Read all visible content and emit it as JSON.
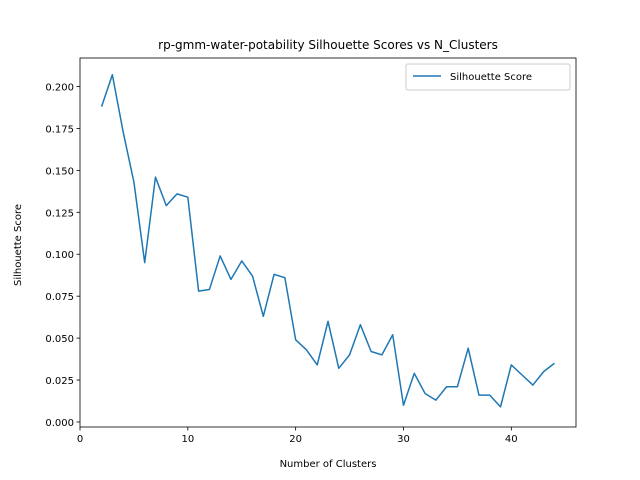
{
  "chart_data": {
    "type": "line",
    "title": "rp-gmm-water-potability Silhouette Scores vs N_Clusters",
    "xlabel": "Number of Clusters",
    "ylabel": "Silhouette Score",
    "xlim": [
      0,
      46
    ],
    "ylim": [
      -0.003,
      0.217
    ],
    "xticks": [
      0,
      10,
      20,
      30,
      40
    ],
    "yticks": [
      0.0,
      0.025,
      0.05,
      0.075,
      0.1,
      0.125,
      0.15,
      0.175,
      0.2
    ],
    "xtick_labels": [
      "0",
      "10",
      "20",
      "30",
      "40"
    ],
    "ytick_labels": [
      "0.000",
      "0.025",
      "0.050",
      "0.075",
      "0.100",
      "0.125",
      "0.150",
      "0.175",
      "0.200"
    ],
    "grid": false,
    "legend_position": "top-right",
    "series": [
      {
        "name": "Silhouette Score",
        "color": "#1f77b4",
        "x": [
          2,
          3,
          4,
          5,
          6,
          7,
          8,
          9,
          10,
          11,
          12,
          13,
          14,
          15,
          16,
          17,
          18,
          19,
          20,
          21,
          22,
          23,
          24,
          25,
          26,
          27,
          28,
          29,
          30,
          31,
          32,
          33,
          34,
          35,
          36,
          37,
          38,
          39,
          40,
          41,
          42,
          43,
          44
        ],
        "y": [
          0.188,
          0.207,
          0.173,
          0.143,
          0.095,
          0.146,
          0.129,
          0.136,
          0.134,
          0.078,
          0.079,
          0.099,
          0.085,
          0.096,
          0.087,
          0.063,
          0.088,
          0.086,
          0.049,
          0.043,
          0.034,
          0.06,
          0.032,
          0.04,
          0.058,
          0.042,
          0.04,
          0.052,
          0.01,
          0.029,
          0.017,
          0.013,
          0.021,
          0.021,
          0.044,
          0.016,
          0.016,
          0.009,
          0.034,
          0.028,
          0.022,
          0.03,
          0.035
        ]
      }
    ]
  }
}
